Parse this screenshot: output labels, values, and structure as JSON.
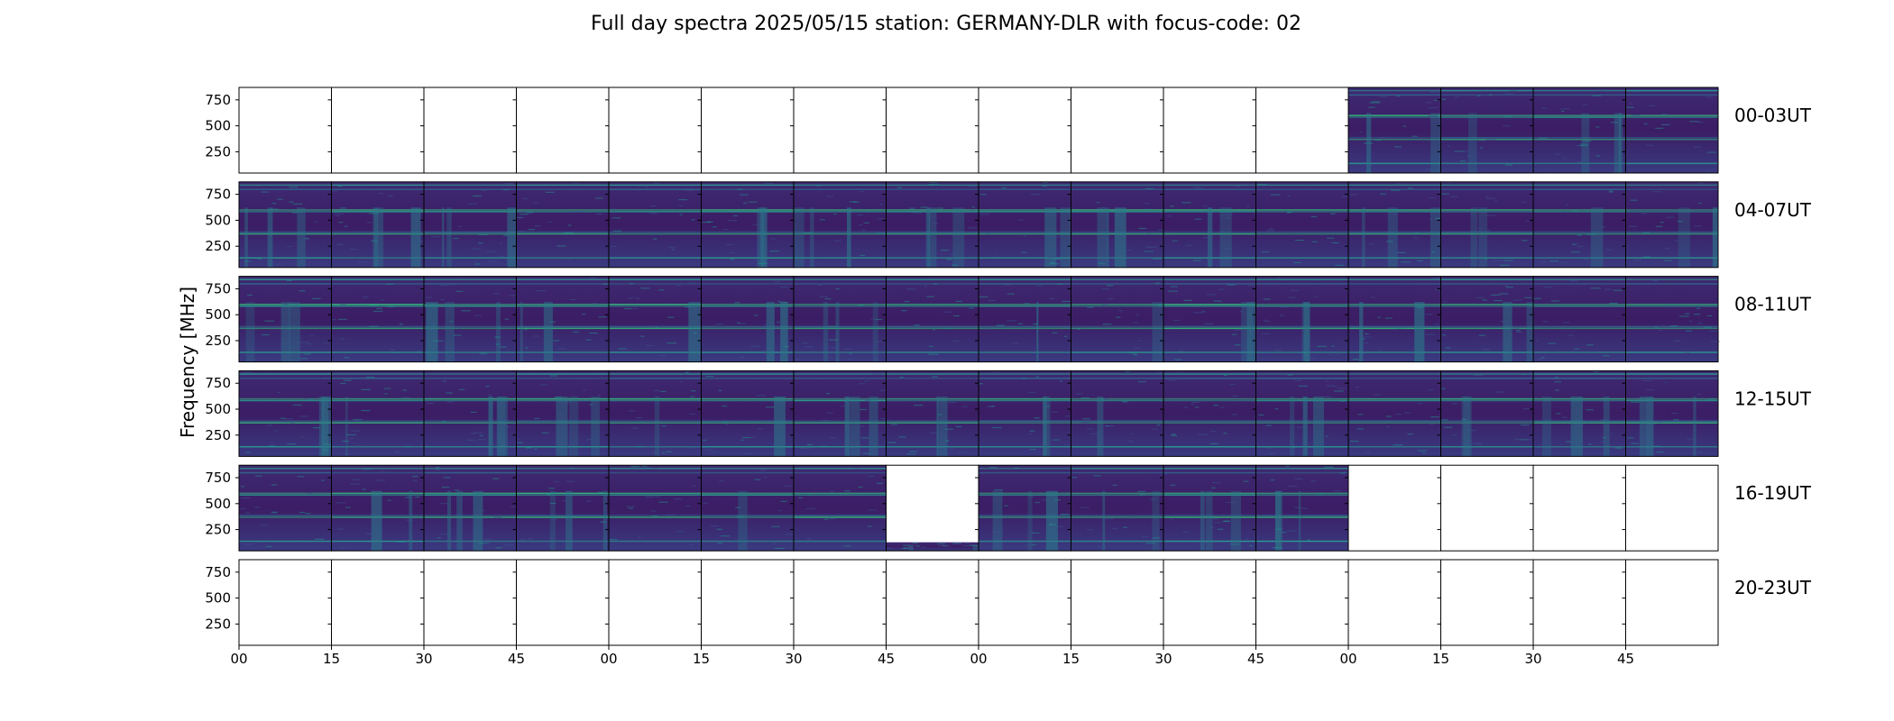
{
  "chart_data": {
    "type": "heatmap",
    "title": "Full day spectra 2025/05/15 station: GERMANY-DLR with focus-code: 02",
    "ylabel": "Frequency [MHz]",
    "xlabel": "",
    "y_ticks": [
      "250",
      "500",
      "750"
    ],
    "y_tick_values": [
      250,
      500,
      750
    ],
    "ylim": [
      45,
      870
    ],
    "x_ticks": [
      "00",
      "15",
      "30",
      "45",
      "00",
      "15",
      "30",
      "45",
      "00",
      "15",
      "30",
      "45",
      "00",
      "15",
      "30",
      "45"
    ],
    "minutes_per_panel": 15,
    "panels_per_row": 16,
    "colormap": "viridis",
    "colors": {
      "background": "#440154",
      "mid": "#3b528b",
      "teal": "#21918c",
      "green": "#5ec962",
      "yellow": "#fde725"
    },
    "rows": [
      {
        "label": "00-03UT",
        "panels": [
          0,
          0,
          0,
          0,
          0,
          0,
          0,
          0,
          0,
          0,
          0,
          0,
          1,
          1,
          1,
          1
        ]
      },
      {
        "label": "04-07UT",
        "panels": [
          1,
          1,
          1,
          1,
          1,
          1,
          1,
          1,
          1,
          1,
          1,
          1,
          1,
          1,
          1,
          1
        ]
      },
      {
        "label": "08-11UT",
        "panels": [
          1,
          1,
          1,
          1,
          1,
          1,
          1,
          1,
          1,
          1,
          1,
          1,
          1,
          1,
          1,
          1
        ]
      },
      {
        "label": "12-15UT",
        "panels": [
          1,
          1,
          1,
          1,
          1,
          1,
          1,
          1,
          1,
          1,
          1,
          1,
          1,
          1,
          1,
          1
        ]
      },
      {
        "label": "16-19UT",
        "panels": [
          1,
          1,
          1,
          1,
          1,
          1,
          1,
          0.1,
          1,
          1,
          1,
          1,
          0,
          0,
          0,
          0
        ]
      },
      {
        "label": "20-23UT",
        "panels": [
          0,
          0,
          0,
          0,
          0,
          0,
          0,
          0,
          0,
          0,
          0,
          0,
          0,
          0,
          0,
          0
        ]
      }
    ]
  }
}
